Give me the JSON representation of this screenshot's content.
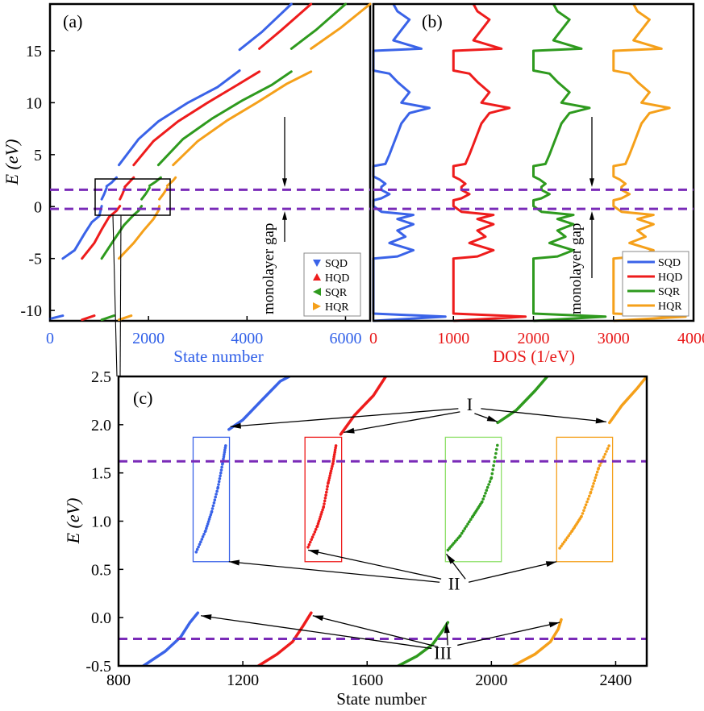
{
  "colors": {
    "SQD": "#3a63e8",
    "HQD": "#ee1c1c",
    "SQR": "#2e9a1e",
    "HQR": "#f5a01a",
    "dashed": "#7a2bb8",
    "box_sqr": "#8fe06a",
    "axis_blue": "#2f5fe8",
    "axis_red": "#e81818"
  },
  "chart_data": [
    {
      "id": "a",
      "type": "scatter",
      "panel_label": "(a)",
      "xlabel": "State number",
      "ylabel": "E (eV)",
      "xlim": [
        0,
        6500
      ],
      "ylim": [
        -11,
        19.5
      ],
      "xticks": [
        0,
        2000,
        4000,
        6000
      ],
      "yticks": [
        -10,
        -5,
        0,
        5,
        10,
        15
      ],
      "dashed_lines_y": [
        1.62,
        -0.22
      ],
      "annotation": "monolayer gap",
      "legend": {
        "placement": "bottom-right",
        "entries": [
          "SQD",
          "HQD",
          "SQR",
          "HQR"
        ]
      },
      "series": [
        {
          "name": "SQD",
          "segments": [
            [
              [
                0,
                -10.8
              ],
              [
                260,
                -10.5
              ]
            ],
            [
              [
                260,
                -5
              ],
              [
                500,
                -4.2
              ],
              [
                700,
                -2.6
              ],
              [
                850,
                -1.5
              ],
              [
                1000,
                -0.9
              ],
              [
                1050,
                0.05
              ]
            ],
            [
              [
                1050,
                0.7
              ],
              [
                1100,
                1.2
              ],
              [
                1150,
                1.8
              ]
            ],
            [
              [
                1150,
                1.95
              ],
              [
                1250,
                2.3
              ],
              [
                1350,
                2.8
              ]
            ],
            [
              [
                1400,
                4
              ],
              [
                1800,
                6.5
              ],
              [
                2200,
                8.2
              ],
              [
                2800,
                10
              ],
              [
                3400,
                11.5
              ],
              [
                3850,
                13.1
              ]
            ],
            [
              [
                3850,
                15.1
              ],
              [
                4300,
                16.8
              ],
              [
                4900,
                19.5
              ]
            ]
          ]
        },
        {
          "name": "HQD",
          "segments": [
            [
              [
                650,
                -10.9
              ],
              [
                900,
                -10.5
              ]
            ],
            [
              [
                650,
                -5
              ],
              [
                900,
                -3.5
              ],
              [
                1050,
                -2.2
              ],
              [
                1200,
                -1
              ],
              [
                1350,
                -0.4
              ],
              [
                1420,
                0.05
              ]
            ],
            [
              [
                1420,
                0.7
              ],
              [
                1470,
                1.2
              ],
              [
                1520,
                1.8
              ]
            ],
            [
              [
                1520,
                1.9
              ],
              [
                1600,
                2.3
              ],
              [
                1700,
                2.8
              ]
            ],
            [
              [
                1700,
                4
              ],
              [
                2100,
                6.3
              ],
              [
                2600,
                8.2
              ],
              [
                3200,
                10
              ],
              [
                3800,
                11.7
              ],
              [
                4250,
                13
              ]
            ],
            [
              [
                4250,
                15.2
              ],
              [
                4700,
                17
              ],
              [
                5300,
                19.5
              ]
            ]
          ]
        },
        {
          "name": "SQR",
          "segments": [
            [
              [
                1050,
                -10.9
              ],
              [
                1300,
                -10.5
              ]
            ],
            [
              [
                1050,
                -5
              ],
              [
                1300,
                -3.2
              ],
              [
                1500,
                -1.8
              ],
              [
                1700,
                -0.8
              ],
              [
                1800,
                -0.4
              ],
              [
                1860,
                0.05
              ]
            ],
            [
              [
                1860,
                0.7
              ],
              [
                1940,
                1.2
              ],
              [
                2020,
                1.8
              ]
            ],
            [
              [
                2020,
                2
              ],
              [
                2150,
                2.4
              ],
              [
                2250,
                2.8
              ]
            ],
            [
              [
                2200,
                4
              ],
              [
                2700,
                6.5
              ],
              [
                3300,
                8.5
              ],
              [
                3900,
                10.2
              ],
              [
                4500,
                11.7
              ],
              [
                4900,
                13
              ]
            ],
            [
              [
                4900,
                15.2
              ],
              [
                5400,
                17
              ],
              [
                6000,
                19.5
              ]
            ]
          ]
        },
        {
          "name": "HQR",
          "segments": [
            [
              [
                1400,
                -10.9
              ],
              [
                1650,
                -10.5
              ]
            ],
            [
              [
                1400,
                -5
              ],
              [
                1700,
                -3.5
              ],
              [
                1900,
                -2.3
              ],
              [
                2100,
                -1.2
              ],
              [
                2200,
                -0.4
              ],
              [
                2220,
                0.05
              ]
            ],
            [
              [
                2220,
                0.7
              ],
              [
                2300,
                1.2
              ],
              [
                2380,
                1.8
              ]
            ],
            [
              [
                2380,
                2
              ],
              [
                2500,
                2.5
              ],
              [
                2550,
                2.8
              ]
            ],
            [
              [
                2500,
                4
              ],
              [
                3000,
                6.3
              ],
              [
                3600,
                8.3
              ],
              [
                4200,
                10
              ],
              [
                4800,
                11.8
              ],
              [
                5300,
                13
              ]
            ],
            [
              [
                5300,
                15.2
              ],
              [
                5900,
                17.2
              ],
              [
                6500,
                19.5
              ]
            ]
          ]
        }
      ]
    },
    {
      "id": "b",
      "type": "line",
      "panel_label": "(b)",
      "xlabel": "DOS (1/eV)",
      "ylabel": "",
      "xlim": [
        0,
        4000
      ],
      "ylim": [
        -11,
        19.5
      ],
      "xticks": [
        0,
        1000,
        2000,
        3000,
        4000
      ],
      "dashed_lines_y": [
        1.62,
        -0.22
      ],
      "annotation": "monolayer gap",
      "legend": {
        "placement": "bottom-right",
        "entries": [
          "SQD",
          "HQD",
          "SQR",
          "HQR"
        ]
      },
      "offsets": {
        "SQD": 0,
        "HQD": 1000,
        "SQR": 2000,
        "HQR": 3000
      },
      "dos_profile": [
        [
          -11,
          0
        ],
        [
          -10.6,
          900
        ],
        [
          -10.3,
          0
        ],
        [
          -5,
          0
        ],
        [
          -4.8,
          300
        ],
        [
          -4.2,
          500
        ],
        [
          -3.5,
          200
        ],
        [
          -2.9,
          400
        ],
        [
          -2.3,
          300
        ],
        [
          -1.7,
          500
        ],
        [
          -1.2,
          300
        ],
        [
          -0.8,
          500
        ],
        [
          -0.5,
          100
        ],
        [
          0.05,
          0
        ],
        [
          0.6,
          0
        ],
        [
          0.8,
          100
        ],
        [
          1.2,
          200
        ],
        [
          1.6,
          100
        ],
        [
          1.9,
          100
        ],
        [
          2.2,
          150
        ],
        [
          2.6,
          80
        ],
        [
          2.9,
          0
        ],
        [
          3.9,
          0
        ],
        [
          4.1,
          150
        ],
        [
          5,
          200
        ],
        [
          6,
          250
        ],
        [
          7,
          300
        ],
        [
          8,
          350
        ],
        [
          9,
          450
        ],
        [
          9.5,
          700
        ],
        [
          10,
          350
        ],
        [
          11,
          450
        ],
        [
          12,
          300
        ],
        [
          12.8,
          200
        ],
        [
          13.1,
          0
        ],
        [
          15,
          0
        ],
        [
          15.2,
          600
        ],
        [
          16,
          250
        ],
        [
          17,
          350
        ],
        [
          18,
          450
        ],
        [
          18.8,
          300
        ],
        [
          19.5,
          250
        ]
      ]
    },
    {
      "id": "c",
      "type": "scatter",
      "panel_label": "(c)",
      "xlabel": "State number",
      "ylabel": "E (eV)",
      "xlim": [
        800,
        2500
      ],
      "ylim": [
        -0.5,
        2.5
      ],
      "xticks": [
        800,
        1200,
        1600,
        2000,
        2400
      ],
      "yticks": [
        -0.5,
        0.0,
        0.5,
        1.0,
        1.5,
        2.0,
        2.5
      ],
      "dashed_lines_y": [
        1.62,
        -0.22
      ],
      "annotations": [
        {
          "text": "I",
          "x": 1930,
          "y": 2.2
        },
        {
          "text": "II",
          "x": 1880,
          "y": 0.35
        },
        {
          "text": "III",
          "x": 1870,
          "y": -0.37
        }
      ],
      "series": [
        {
          "name": "SQD",
          "lower": [
            [
              880,
              -0.5
            ],
            [
              950,
              -0.35
            ],
            [
              1000,
              -0.2
            ],
            [
              1030,
              -0.05
            ],
            [
              1055,
              0.05
            ]
          ],
          "middle": [
            [
              1050,
              0.68
            ],
            [
              1080,
              0.9
            ],
            [
              1100,
              1.1
            ],
            [
              1120,
              1.35
            ],
            [
              1135,
              1.6
            ],
            [
              1145,
              1.79
            ]
          ],
          "upper": [
            [
              1155,
              1.95
            ],
            [
              1200,
              2.05
            ],
            [
              1260,
              2.25
            ],
            [
              1320,
              2.45
            ],
            [
              1350,
              2.5
            ]
          ],
          "box": [
            1040,
            0.58,
            1157,
            1.87
          ]
        },
        {
          "name": "HQD",
          "lower": [
            [
              1250,
              -0.5
            ],
            [
              1310,
              -0.38
            ],
            [
              1360,
              -0.25
            ],
            [
              1395,
              -0.08
            ],
            [
              1420,
              0.05
            ]
          ],
          "middle": [
            [
              1410,
              0.73
            ],
            [
              1440,
              0.95
            ],
            [
              1460,
              1.15
            ],
            [
              1475,
              1.4
            ],
            [
              1490,
              1.6
            ],
            [
              1500,
              1.79
            ]
          ],
          "upper": [
            [
              1515,
              1.9
            ],
            [
              1560,
              2.1
            ],
            [
              1620,
              2.3
            ],
            [
              1660,
              2.5
            ]
          ],
          "box": [
            1400,
            0.58,
            1518,
            1.87
          ]
        },
        {
          "name": "SQR",
          "lower": [
            [
              1700,
              -0.5
            ],
            [
              1760,
              -0.4
            ],
            [
              1810,
              -0.28
            ],
            [
              1840,
              -0.15
            ],
            [
              1860,
              -0.05
            ]
          ],
          "middle": [
            [
              1860,
              0.7
            ],
            [
              1900,
              0.85
            ],
            [
              1940,
              1.05
            ],
            [
              1970,
              1.2
            ],
            [
              2000,
              1.45
            ],
            [
              2020,
              1.8
            ]
          ],
          "upper": [
            [
              2020,
              2.02
            ],
            [
              2080,
              2.15
            ],
            [
              2140,
              2.35
            ],
            [
              2180,
              2.5
            ]
          ],
          "box": [
            1852,
            0.58,
            2032,
            1.87
          ]
        },
        {
          "name": "HQR",
          "lower": [
            [
              2070,
              -0.5
            ],
            [
              2140,
              -0.38
            ],
            [
              2190,
              -0.25
            ],
            [
              2215,
              -0.12
            ],
            [
              2225,
              -0.02
            ]
          ],
          "middle": [
            [
              2220,
              0.72
            ],
            [
              2260,
              0.9
            ],
            [
              2290,
              1.05
            ],
            [
              2320,
              1.3
            ],
            [
              2345,
              1.55
            ],
            [
              2380,
              1.79
            ]
          ],
          "upper": [
            [
              2380,
              2.02
            ],
            [
              2420,
              2.2
            ],
            [
              2470,
              2.38
            ],
            [
              2500,
              2.5
            ]
          ],
          "box": [
            2210,
            0.58,
            2390,
            1.87
          ]
        }
      ]
    }
  ]
}
